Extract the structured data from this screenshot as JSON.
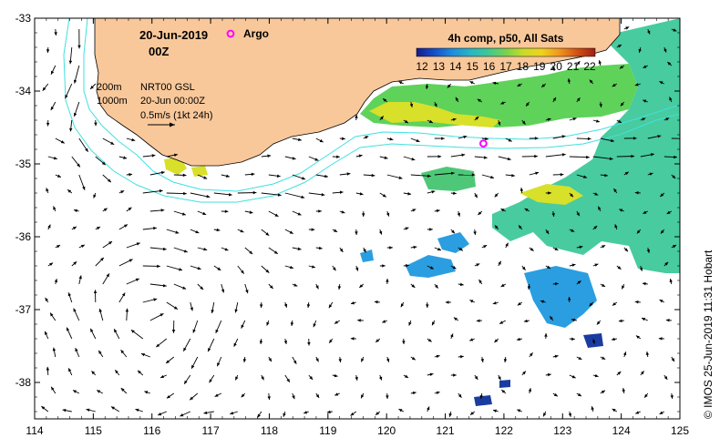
{
  "header": {
    "date": "20-Jun-2019",
    "time": "00Z"
  },
  "legend": {
    "argo_label": "Argo",
    "contour_200": "200m",
    "contour_1000": "1000m",
    "product": "NRT00 GSL",
    "product_time": "20-Jun 00:00Z",
    "scale_label": "0.5m/s (1kt 24h)"
  },
  "colorbar": {
    "title": "4h comp, p50, All Sats",
    "ticks": [
      "12",
      "13",
      "14",
      "15",
      "16",
      "17",
      "18",
      "19",
      "20",
      "21",
      "22"
    ],
    "colors": [
      "#1a1a8c",
      "#1450c8",
      "#1e8cdc",
      "#28b4c8",
      "#3cc896",
      "#78d250",
      "#c8dc28",
      "#f0d21e",
      "#f0961e",
      "#d25014",
      "#a01e14"
    ]
  },
  "credit": "© IMOS 25-Jun-2019 11:31 Hobart",
  "axes": {
    "x_ticks": [
      "114",
      "115",
      "116",
      "117",
      "118",
      "119",
      "120",
      "121",
      "122",
      "123",
      "124",
      "125"
    ],
    "y_ticks": [
      "-33",
      "-34",
      "-35",
      "-36",
      "-37",
      "-38"
    ]
  },
  "colors": {
    "land": "#f9c89a",
    "contour": "#40e0e0",
    "argo": "#ff00ff",
    "sst_cool": "#2a9ee0",
    "sst_teal": "#3ec89a",
    "sst_green": "#5fd25a",
    "sst_yellow": "#d8e02a",
    "sst_dark": "#1a3ca0"
  },
  "argo_float": {
    "lon": 121.65,
    "lat": -34.72
  }
}
